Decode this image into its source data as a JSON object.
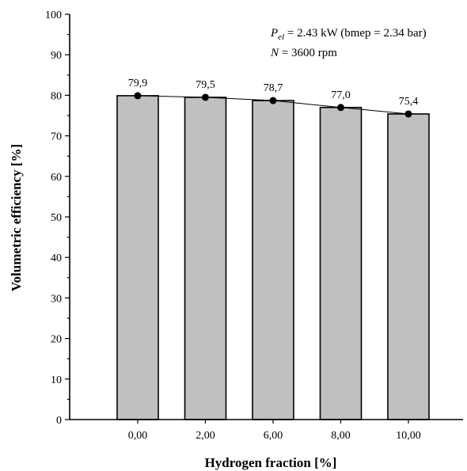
{
  "chart_data": {
    "type": "bar",
    "categories": [
      "0,00",
      "2,00",
      "6,00",
      "8,00",
      "10,00"
    ],
    "values": [
      79.9,
      79.5,
      78.7,
      77.0,
      75.4
    ],
    "data_labels": [
      "79,9",
      "79,5",
      "78,7",
      "77,0",
      "75,4"
    ],
    "line_overlay": true,
    "xlabel": "Hydrogen fraction [%]",
    "ylabel": "Volumetric efficiency [%]",
    "ylim": [
      0,
      100
    ],
    "yticks": [
      "0",
      "10",
      "20",
      "30",
      "40",
      "50",
      "60",
      "70",
      "80",
      "90",
      "100"
    ],
    "bar_color": "#c0c0c0",
    "annotation": {
      "line1_symbol": "P",
      "line1_subscript": "el",
      "line1_rest": " = 2.43 kW (bmep = 2.34 bar)",
      "line2_symbol": "N",
      "line2_rest": " = 3600 rpm"
    }
  }
}
